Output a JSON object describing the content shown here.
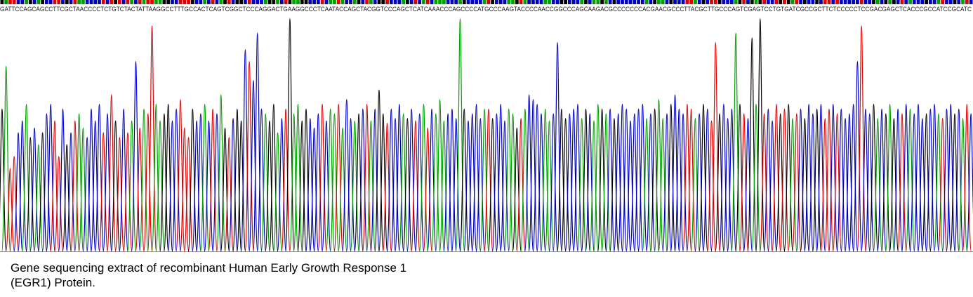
{
  "chart_data": {
    "type": "chromatogram",
    "sequence": "GATTCCAGCAGCCTTCGCTAACCCCTCTGTCTACTATTAAGGCCTTTGCCACTCAGTCGGCTCCCAGGACTGAAGGCCCTCAATACCAGCTACGGTCCCAGCTCATCAAACCCAGCCCCATGCCCAAGTACCCCAACCGGCCCAGCAAGACGCCCCCCCACGAACGCCCTTACGCTTGCCCAGTCGAGTCCTGTGATCGCCGCTTCTCCCCCTCCGACGAGCTCACCCGCCATCCGCATC",
    "heights": [
      60,
      78,
      35,
      40,
      50,
      55,
      62,
      48,
      52,
      45,
      50,
      58,
      62,
      55,
      40,
      60,
      45,
      50,
      55,
      58,
      52,
      48,
      60,
      55,
      62,
      50,
      58,
      66,
      55,
      48,
      60,
      50,
      55,
      80,
      52,
      60,
      58,
      95,
      62,
      55,
      58,
      62,
      55,
      60,
      64,
      52,
      48,
      60,
      55,
      58,
      62,
      55,
      60,
      58,
      66,
      52,
      48,
      56,
      60,
      55,
      85,
      80,
      72,
      92,
      60,
      58,
      55,
      62,
      50,
      56,
      60,
      98,
      58,
      62,
      55,
      60,
      56,
      52,
      58,
      62,
      55,
      60,
      58,
      62,
      52,
      64,
      56,
      55,
      58,
      60,
      62,
      55,
      60,
      68,
      58,
      54,
      60,
      56,
      62,
      58,
      56,
      60,
      55,
      58,
      62,
      52,
      60,
      58,
      64,
      55,
      58,
      60,
      56,
      98,
      60,
      55,
      58,
      62,
      56,
      60,
      60,
      56,
      58,
      62,
      55,
      60,
      58,
      52,
      56,
      60,
      66,
      64,
      62,
      58,
      60,
      55,
      58,
      88,
      60,
      56,
      58,
      60,
      62,
      56,
      60,
      58,
      55,
      62,
      60,
      58,
      60,
      56,
      58,
      62,
      60,
      55,
      58,
      60,
      62,
      56,
      58,
      60,
      64,
      56,
      58,
      62,
      66,
      60,
      58,
      62,
      60,
      56,
      58,
      62,
      60,
      55,
      88,
      58,
      62,
      56,
      60,
      92,
      62,
      58,
      56,
      90,
      62,
      98,
      58,
      60,
      55,
      62,
      58,
      60,
      62,
      56,
      58,
      60,
      56,
      62,
      58,
      60,
      62,
      56,
      60,
      62,
      58,
      60,
      56,
      58,
      62,
      80,
      95,
      60,
      58,
      62,
      56,
      60,
      58,
      62,
      56,
      60,
      58,
      62,
      60,
      58,
      62,
      56,
      58,
      60,
      62,
      58,
      56,
      60,
      62,
      58,
      60,
      56,
      62,
      58
    ],
    "ylim": [
      0,
      100
    ],
    "colors": {
      "A": "#00a000",
      "C": "#0000c0",
      "G": "#000000",
      "T": "#e00000"
    },
    "caption": [
      "Gene sequencing extract of recombinant Human Early Growth Response 1",
      "(EGR1) Protein."
    ]
  }
}
